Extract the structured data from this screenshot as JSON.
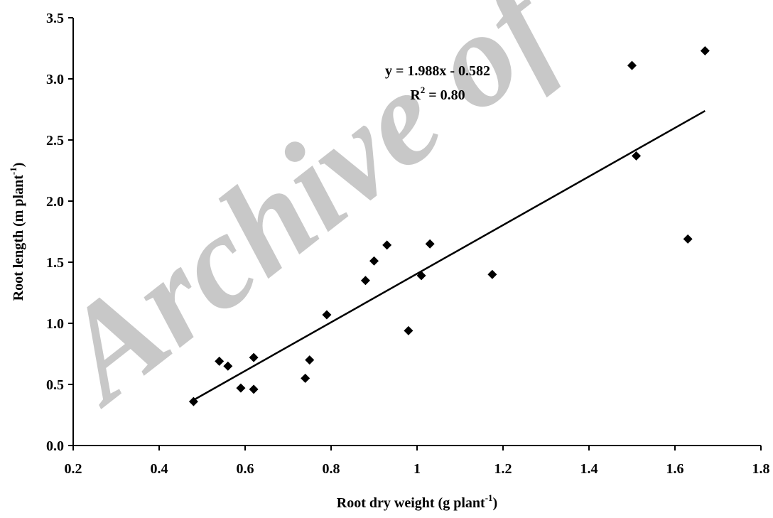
{
  "watermark": "Archive of",
  "chart_data": {
    "type": "scatter",
    "xlabel": "Root dry weight (g plant",
    "xlabel_sup": "-1",
    "xlabel_end": ")",
    "ylabel": "Root length (m plant",
    "ylabel_sup": "-1",
    "ylabel_end": ")",
    "xlim": [
      0.2,
      1.8
    ],
    "ylim": [
      0.0,
      3.5
    ],
    "x_ticks": [
      0.2,
      0.4,
      0.6,
      0.8,
      1,
      1.2,
      1.4,
      1.6,
      1.8
    ],
    "x_tick_labels": [
      "0.2",
      "0.4",
      "0.6",
      "0.8",
      "1",
      "1.2",
      "1.4",
      "1.6",
      "1.8"
    ],
    "y_ticks": [
      0.0,
      0.5,
      1.0,
      1.5,
      2.0,
      2.5,
      3.0,
      3.5
    ],
    "y_tick_labels": [
      "0.0",
      "0.5",
      "1.0",
      "1.5",
      "2.0",
      "2.5",
      "3.0",
      "3.5"
    ],
    "grid": false,
    "points": [
      {
        "x": 0.48,
        "y": 0.36
      },
      {
        "x": 0.54,
        "y": 0.69
      },
      {
        "x": 0.56,
        "y": 0.65
      },
      {
        "x": 0.59,
        "y": 0.47
      },
      {
        "x": 0.62,
        "y": 0.72
      },
      {
        "x": 0.62,
        "y": 0.46
      },
      {
        "x": 0.74,
        "y": 0.55
      },
      {
        "x": 0.75,
        "y": 0.7
      },
      {
        "x": 0.79,
        "y": 1.07
      },
      {
        "x": 0.88,
        "y": 1.35
      },
      {
        "x": 0.9,
        "y": 1.51
      },
      {
        "x": 0.93,
        "y": 1.64
      },
      {
        "x": 0.98,
        "y": 0.94
      },
      {
        "x": 1.01,
        "y": 1.39
      },
      {
        "x": 1.03,
        "y": 1.65
      },
      {
        "x": 1.175,
        "y": 1.4
      },
      {
        "x": 1.5,
        "y": 3.11
      },
      {
        "x": 1.51,
        "y": 2.37
      },
      {
        "x": 1.63,
        "y": 1.69
      },
      {
        "x": 1.67,
        "y": 3.23
      }
    ],
    "trendline": {
      "slope": 1.988,
      "intercept": -0.582,
      "x_range": [
        0.48,
        1.67
      ]
    },
    "equation_text": "y = 1.988x - 0.582",
    "r2_text_prefix": "R",
    "r2_text_sup": "2",
    "r2_text_suffix": " = 0.80"
  }
}
